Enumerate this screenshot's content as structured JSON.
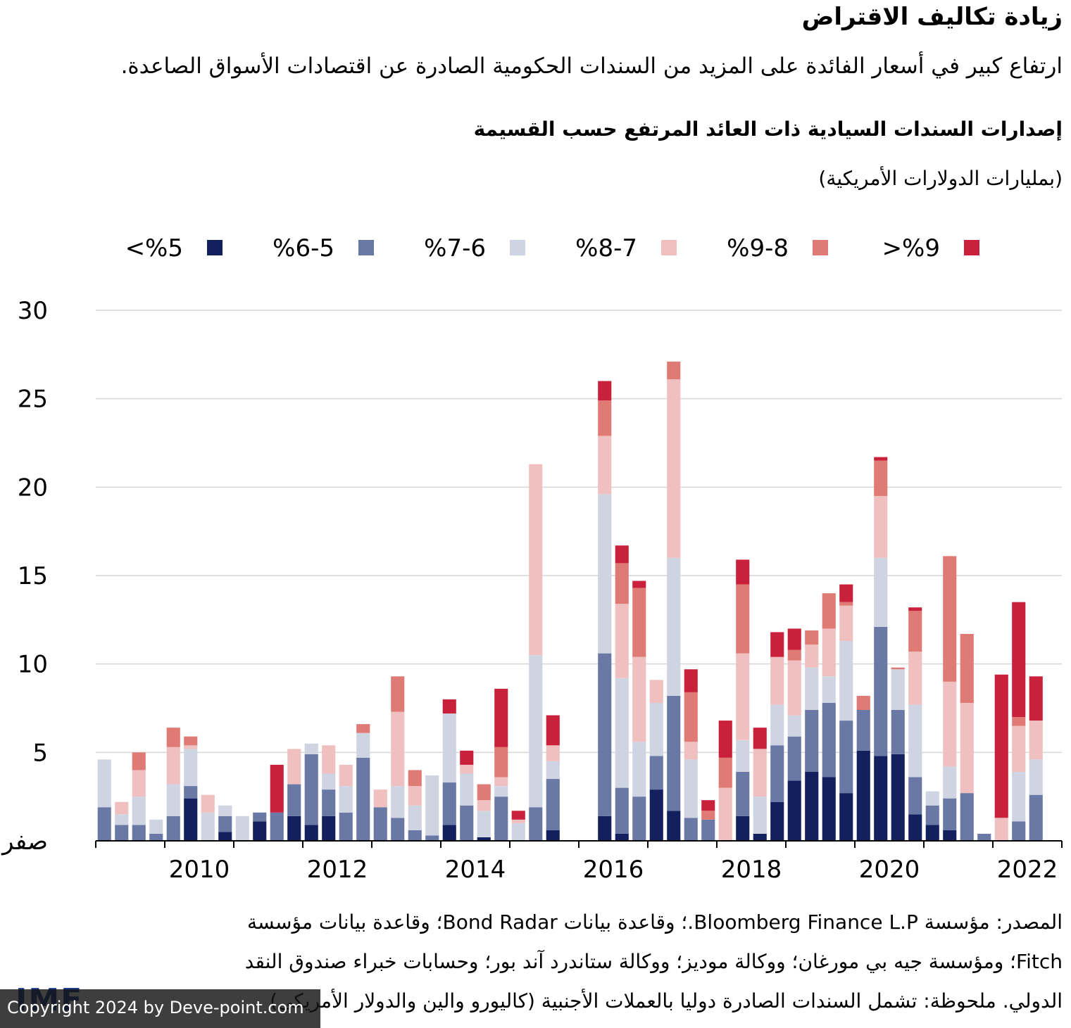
{
  "header": {
    "title": "زيادة تكاليف الاقتراض",
    "subtitle": "ارتفاع كبير في أسعار الفائدة على المزيد من السندات الحكومية الصادرة عن اقتصادات الأسواق الصاعدة."
  },
  "footer": {
    "source_line_1": "المصدر: مؤسسة Bloomberg Finance L.P.؛ وقاعدة بيانات Bond Radar؛ وقاعدة بيانات مؤسسة",
    "source_line_2": "Fitch؛ ومؤسسة جيه بي مورغان؛ ووكالة موديز؛ ووكالة ستاندرد آند بور؛ وحسابات خبراء صندوق النقد",
    "source_line_3": "الدولي. ملحوظة: تشمل السندات الصادرة دوليا بالعملات الأجنبية (كاليورو والين والدولار الأمريكي)",
    "logo_text": "IMF",
    "copyright": "Copyright 2024 by Deve-point.com"
  },
  "chart_data": {
    "type": "bar",
    "stacked": true,
    "title": "إصدارات السندات السيادية ذات العائد المرتفع حسب القسيمة",
    "ylabel": "(بمليارات الدولارات الأمريكية)",
    "ylim": [
      0,
      30
    ],
    "y_ticks": [
      {
        "value": 0,
        "label": "صفر"
      },
      {
        "value": 5,
        "label": "5"
      },
      {
        "value": 10,
        "label": "10"
      },
      {
        "value": 15,
        "label": "15"
      },
      {
        "value": 20,
        "label": "20"
      },
      {
        "value": 25,
        "label": "25"
      },
      {
        "value": 30,
        "label": "30"
      }
    ],
    "x_ticks": [
      "2010",
      "2012",
      "2014",
      "2016",
      "2018",
      "2020",
      "2022"
    ],
    "grid": true,
    "legend_position": "top",
    "categories": [
      "2009Q1",
      "2009Q2",
      "2009Q3",
      "2009Q4",
      "2010Q1",
      "2010Q2",
      "2010Q3",
      "2010Q4",
      "2011Q1",
      "2011Q2",
      "2011Q3",
      "2011Q4",
      "2012Q1",
      "2012Q2",
      "2012Q3",
      "2012Q4",
      "2013Q1",
      "2013Q2",
      "2013Q3",
      "2013Q4",
      "2014Q1",
      "2014Q2",
      "2014Q3",
      "2014Q4",
      "2015Q1",
      "2015Q2",
      "2015Q3",
      "2015Q4",
      "2016Q1",
      "2016Q2",
      "2016Q3",
      "2016Q4",
      "2017Q1",
      "2017Q2",
      "2017Q3",
      "2017Q4",
      "2018Q1",
      "2018Q2",
      "2018Q3",
      "2018Q4",
      "2019Q1",
      "2019Q2",
      "2019Q3",
      "2019Q4",
      "2020Q1",
      "2020Q2",
      "2020Q3",
      "2020Q4",
      "2021Q1",
      "2021Q2",
      "2021Q3",
      "2021Q4",
      "2022Q1",
      "2022Q2",
      "2022Q3",
      "2022Q4"
    ],
    "series": [
      {
        "name": "<%5",
        "color": "#12215e",
        "values": [
          0,
          0,
          0,
          0,
          0,
          2.4,
          0,
          0.5,
          0,
          1.1,
          0,
          1.4,
          0.9,
          1.4,
          0,
          0,
          0,
          0,
          0,
          0,
          0.9,
          0,
          0.2,
          0,
          0,
          0,
          0.6,
          0,
          0,
          1.4,
          0.4,
          0,
          2.9,
          1.7,
          0,
          0,
          0,
          1.4,
          0.4,
          2.2,
          3.4,
          3.9,
          3.6,
          2.7,
          5.1,
          4.8,
          4.9,
          1.5,
          0.9,
          0.6,
          0,
          0,
          0,
          0,
          0,
          0
        ]
      },
      {
        "name": "%6-5",
        "color": "#6978a4",
        "values": [
          1.9,
          0.9,
          0.9,
          0.4,
          1.4,
          0.7,
          0,
          0.9,
          0,
          0.5,
          1.6,
          1.8,
          4.0,
          1.5,
          1.6,
          4.7,
          1.9,
          1.3,
          0.6,
          0.3,
          2.4,
          2.0,
          0,
          2.5,
          0,
          1.9,
          2.9,
          0,
          0,
          9.2,
          2.6,
          2.5,
          1.9,
          6.5,
          1.3,
          1.2,
          0,
          2.5,
          0,
          3.2,
          2.5,
          3.5,
          4.2,
          4.1,
          2.3,
          7.3,
          2.5,
          2.1,
          1.1,
          1.8,
          2.7,
          0.4,
          0,
          1.1,
          2.6,
          0
        ]
      },
      {
        "name": "%7-6",
        "color": "#cfd4e2",
        "values": [
          2.7,
          0.6,
          1.6,
          0.8,
          1.8,
          2.1,
          1.6,
          0.6,
          1.4,
          0,
          0,
          0,
          0.6,
          0.9,
          1.5,
          1.4,
          0,
          1.8,
          1.4,
          3.4,
          3.9,
          1.8,
          1.5,
          0.6,
          1.0,
          8.6,
          1.0,
          0,
          0,
          9.0,
          6.2,
          3.1,
          3.0,
          7.8,
          3.3,
          0,
          0,
          1.8,
          2.1,
          2.3,
          1.2,
          2.4,
          1.5,
          4.5,
          0,
          3.9,
          2.3,
          4.1,
          0.8,
          1.8,
          0,
          0,
          0,
          2.8,
          2.0,
          0
        ]
      },
      {
        "name": "%8-7",
        "color": "#f0c0c0",
        "values": [
          0,
          0.7,
          1.5,
          0,
          2.1,
          0.2,
          1.0,
          0,
          0,
          0,
          0,
          2.0,
          0,
          1.6,
          1.2,
          0,
          1.0,
          4.2,
          1.1,
          0,
          0,
          0.5,
          0.6,
          0.5,
          0.2,
          10.8,
          0.9,
          0,
          0,
          3.3,
          4.2,
          4.8,
          1.3,
          10.1,
          1.0,
          0,
          3.0,
          4.9,
          2.7,
          2.7,
          3.1,
          1.3,
          2.7,
          2.0,
          0,
          3.5,
          0,
          3.0,
          0,
          4.8,
          5.1,
          0,
          1.3,
          2.6,
          2.2,
          0
        ]
      },
      {
        "name": "%9-8",
        "color": "#e07a74",
        "values": [
          0,
          0,
          1.0,
          0,
          1.1,
          0.5,
          0,
          0,
          0,
          0,
          0,
          0,
          0,
          0,
          0,
          0.5,
          0,
          2.0,
          0.9,
          0,
          0,
          0,
          0.9,
          1.7,
          0,
          0,
          0,
          0,
          0,
          2.0,
          2.3,
          3.9,
          0,
          1.0,
          2.8,
          0.5,
          1.7,
          3.9,
          0,
          0,
          0.6,
          0.8,
          2.0,
          0.2,
          0.8,
          2.0,
          0.1,
          2.3,
          0,
          7.1,
          3.9,
          0,
          0,
          0.5,
          0,
          0
        ]
      },
      {
        "name": ">%9",
        "color": "#c9213b",
        "values": [
          0,
          0,
          0,
          0,
          0,
          0,
          0,
          0,
          0,
          0,
          2.7,
          0,
          0,
          0,
          0,
          0,
          0,
          0,
          0,
          0,
          0.8,
          0.8,
          0,
          3.3,
          0.5,
          0,
          1.7,
          0,
          0,
          1.1,
          1.0,
          0.4,
          0,
          0,
          1.3,
          0.6,
          2.1,
          1.4,
          1.2,
          1.4,
          1.2,
          0,
          0,
          1.0,
          0,
          0.2,
          0,
          0.2,
          0,
          0,
          0,
          0,
          8.1,
          6.5,
          2.5,
          0
        ]
      }
    ]
  }
}
